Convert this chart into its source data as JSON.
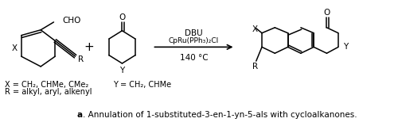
{
  "fig_width": 5.0,
  "fig_height": 1.59,
  "dpi": 100,
  "bg_color": "#ffffff",
  "caption_bold": "a",
  "caption_text": ". Annulation of 1-substituted-3-en-1-yn-5-als with cycloalkanones.",
  "caption_fontsize": 7.5,
  "label_x_eq": "X = CH₂, CHMe, CMe₂",
  "label_r_eq": "R = alkyl, aryl, alkenyl",
  "label_y_eq": "Y = CH₂, CHMe",
  "reagents_line1": "DBU",
  "reagents_line2": "CpRu(PPh₃)₂Cl",
  "reagents_line3": "140 °C",
  "line_color": "#000000",
  "text_color": "#000000",
  "line_width": 1.1
}
